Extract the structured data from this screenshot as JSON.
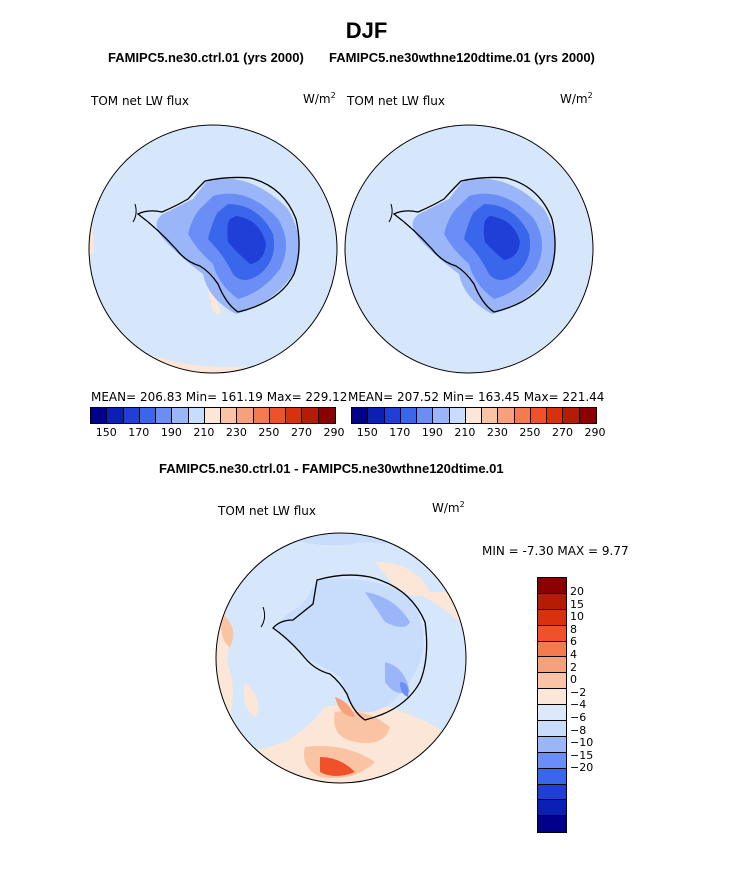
{
  "title": "DJF",
  "subtitles": {
    "left": "FAMIPC5.ne30.ctrl.01 (yrs 2000)",
    "right": "FAMIPC5.ne30wthne120dtime.01 (yrs 2000)",
    "diff": "FAMIPC5.ne30.ctrl.01 - FAMIPC5.ne30wthne120dtime.01"
  },
  "panels": {
    "left": {
      "label": "TOM net LW flux",
      "units": "W/m",
      "units_sup": "2",
      "stats": "MEAN= 206.83   Min= 161.19   Max= 229.12"
    },
    "right": {
      "label": "TOM net LW flux",
      "units": "W/m",
      "units_sup": "2",
      "stats": "MEAN= 207.52   Min= 163.45   Max= 221.44"
    },
    "diff": {
      "label": "TOM net LW flux",
      "units": "W/m",
      "units_sup": "2",
      "stats": "MIN =   -7.30 MAX =    9.77"
    }
  },
  "colorbar_top": {
    "colors": [
      "#00008b",
      "#0a20b4",
      "#1f3fd6",
      "#3a66ec",
      "#6a8ef5",
      "#9ab6f8",
      "#c8dcfb",
      "#fbe6d7",
      "#f9c3a4",
      "#f7a07c",
      "#f57a50",
      "#f0512a",
      "#d9300e",
      "#b51c06",
      "#8b0000"
    ],
    "labels": [
      "150",
      "170",
      "190",
      "210",
      "230",
      "250",
      "270",
      "290"
    ]
  },
  "colorbar_diff": {
    "colors": [
      "#8b0000",
      "#b51c06",
      "#d9300e",
      "#f0512a",
      "#f57a50",
      "#f7a07c",
      "#f9c3a4",
      "#fbe6d7",
      "#dce9fb",
      "#c8dcfb",
      "#9ab6f8",
      "#6a8ef5",
      "#3a66ec",
      "#1f3fd6",
      "#0a20b4",
      "#00008b"
    ],
    "labels": [
      "20",
      "15",
      "10",
      "8",
      "6",
      "4",
      "2",
      "0",
      "−2",
      "−4",
      "−6",
      "−8",
      "−10",
      "−15",
      "−20"
    ]
  },
  "colors": {
    "ocean": "#d6e6fb",
    "land_mid": "#9ab6f8",
    "land_deep": "#3a66ec",
    "core": "#1f3fd6",
    "warm": "#f9c3a4",
    "warm_deep": "#f0512a"
  }
}
